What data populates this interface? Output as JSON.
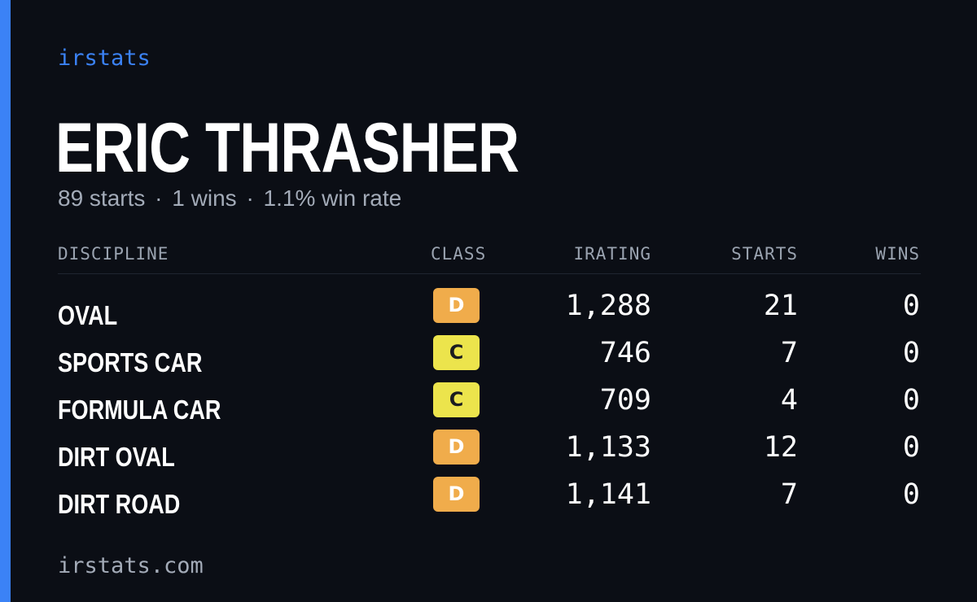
{
  "brand": "irstats",
  "driver": {
    "name": "ERIC THRASHER",
    "starts_text": "89 starts",
    "wins_text": "1 wins",
    "win_rate_text": "1.1% win rate",
    "separator": "·"
  },
  "table": {
    "headers": {
      "discipline": "DISCIPLINE",
      "class": "CLASS",
      "irating": "IRATING",
      "starts": "STARTS",
      "wins": "WINS"
    },
    "rows": [
      {
        "discipline": "OVAL",
        "class": "D",
        "irating": "1,288",
        "starts": "21",
        "wins": "0"
      },
      {
        "discipline": "SPORTS CAR",
        "class": "C",
        "irating": "746",
        "starts": "7",
        "wins": "0"
      },
      {
        "discipline": "FORMULA CAR",
        "class": "C",
        "irating": "709",
        "starts": "4",
        "wins": "0"
      },
      {
        "discipline": "DIRT OVAL",
        "class": "D",
        "irating": "1,133",
        "starts": "12",
        "wins": "0"
      },
      {
        "discipline": "DIRT ROAD",
        "class": "D",
        "irating": "1,141",
        "starts": "7",
        "wins": "0"
      }
    ]
  },
  "footer": {
    "url": "irstats.com"
  },
  "colors": {
    "accent": "#3b82f6",
    "background": "#0b0e15",
    "class_d": "#f0ac4b",
    "class_c": "#ece44c",
    "muted_text": "#a3abb8"
  }
}
